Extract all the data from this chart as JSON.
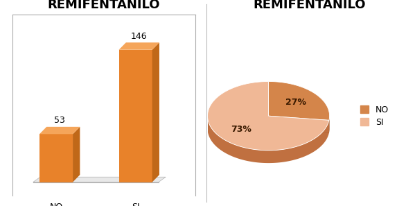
{
  "bar_categories": [
    "NO",
    "SI"
  ],
  "bar_values": [
    53,
    146
  ],
  "bar_color_face": "#E8822A",
  "bar_color_top": "#F5A55A",
  "bar_color_side": "#C06818",
  "bar_floor_color": "#E8E8E8",
  "bar_floor_edge": "#B0B0B0",
  "bar_title": "REMIFENTANILO",
  "pie_title": "REMIFENTANILO",
  "pie_values": [
    27,
    73
  ],
  "pie_labels": [
    "27%",
    "73%"
  ],
  "pie_color_no": "#D4854A",
  "pie_color_si": "#F0B896",
  "pie_color_no_dark": "#9A5020",
  "pie_color_si_dark": "#C07040",
  "pie_legend_labels": [
    "NO",
    "SI"
  ],
  "title_fontsize": 13,
  "title_fontweight": "bold",
  "bar_label_fontsize": 9,
  "tick_fontsize": 9,
  "background_color": "#FFFFFF"
}
